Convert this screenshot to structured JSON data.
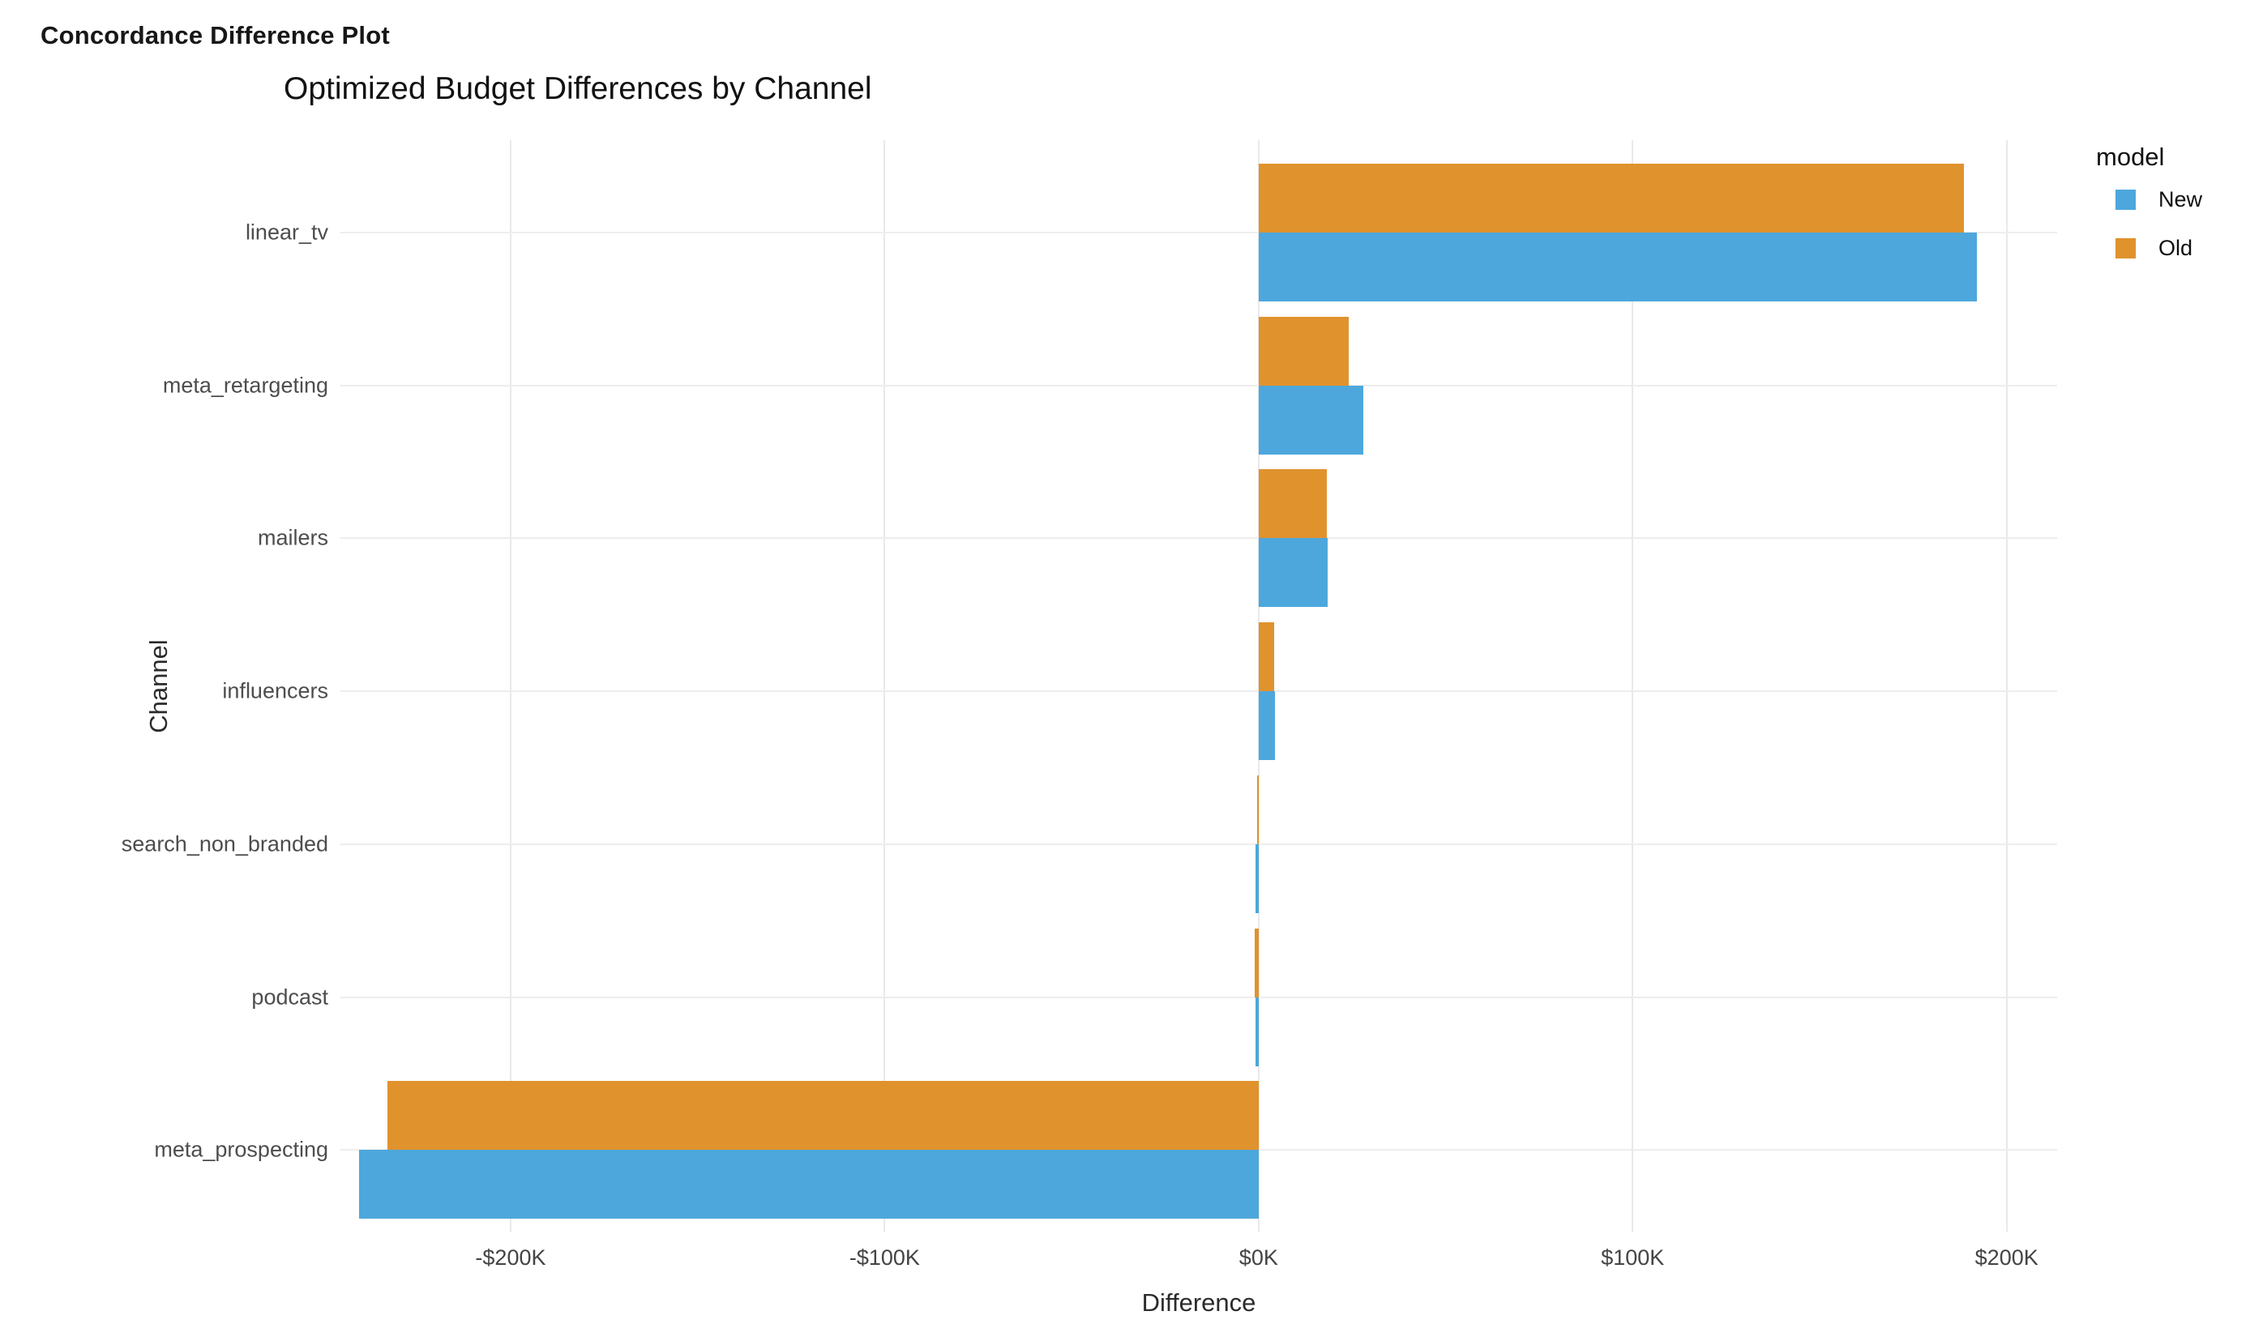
{
  "page": {
    "header": "Concordance Difference Plot",
    "background": "#ffffff"
  },
  "chart_data": {
    "type": "bar",
    "orientation": "horizontal",
    "title": "Optimized Budget Differences by Channel",
    "xlabel": "Difference",
    "ylabel": "Channel",
    "grid": true,
    "categories": [
      "linear_tv",
      "meta_retargeting",
      "mailers",
      "influencers",
      "search_non_branded",
      "podcast",
      "meta_prospecting"
    ],
    "series": [
      {
        "name": "New",
        "color": "#4da7dc",
        "values": [
          192000,
          28000,
          18500,
          4400,
          -900,
          -800,
          -240500
        ]
      },
      {
        "name": "Old",
        "color": "#e0922d",
        "values": [
          188500,
          24000,
          18200,
          4100,
          -300,
          -1000,
          -233000
        ]
      }
    ],
    "x_ticks": [
      {
        "value": -200000,
        "label": "-$200K"
      },
      {
        "value": -100000,
        "label": "-$100K"
      },
      {
        "value": 0,
        "label": "$0K"
      },
      {
        "value": 100000,
        "label": "$100K"
      },
      {
        "value": 200000,
        "label": "$200K"
      }
    ],
    "xlim": [
      -245500,
      213500
    ],
    "legend": {
      "title": "model",
      "position": "right",
      "entries": [
        "New",
        "Old"
      ]
    },
    "colors": {
      "new": "#4da7dc",
      "old": "#e0922d",
      "gridline": "#ebebeb",
      "tick_text": "#444444",
      "title_text": "#111111"
    }
  }
}
